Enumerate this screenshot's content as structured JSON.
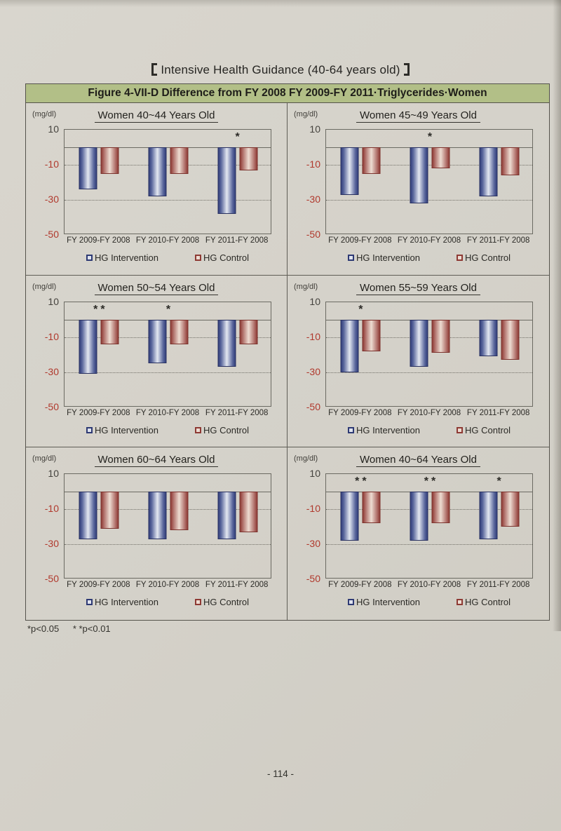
{
  "page": {
    "header_title": "Intensive Health Guidance (40-64 years old)",
    "figure_title": "Figure 4-VII-D Difference from FY 2008 FY 2009-FY 2011·Triglycerides·Women",
    "footnote_sig1": "*p<0.05",
    "footnote_sig2": "* *p<0.01",
    "page_number": "- 114 -"
  },
  "axis": {
    "unit_label": "(mg/dl)",
    "ticks": [
      10,
      -10,
      -30,
      -50
    ],
    "ymax": 10,
    "ymin": -50,
    "gridlines": [
      -10,
      -30
    ]
  },
  "legend": {
    "intervention": "HG Intervention",
    "control": "HG Control"
  },
  "colors": {
    "header_bar_bg": "#b2bf87",
    "intervention_dark": "#333f7c",
    "intervention_light": "#e3e7f1",
    "control_dark": "#8f3c36",
    "control_light": "#eddcd2",
    "negative_tick_red": "#b0392d",
    "paper": "#d4d1c9"
  },
  "chart_data": [
    {
      "type": "bar",
      "title": "Women 40~44 Years Old",
      "ylabel": "(mg/dl)",
      "ylim": [
        -50,
        10
      ],
      "categories": [
        "FY 2009-FY 2008",
        "FY 2010-FY 2008",
        "FY 2011-FY 2008"
      ],
      "series": [
        {
          "name": "HG Intervention",
          "values": [
            -24,
            -28,
            -38
          ]
        },
        {
          "name": "HG Control",
          "values": [
            -15,
            -15,
            -13
          ]
        }
      ],
      "sig": [
        "",
        "",
        "*"
      ]
    },
    {
      "type": "bar",
      "title": "Women 45~49 Years Old",
      "ylabel": "(mg/dl)",
      "ylim": [
        -50,
        10
      ],
      "categories": [
        "FY 2009-FY 2008",
        "FY 2010-FY 2008",
        "FY 2011-FY 2008"
      ],
      "series": [
        {
          "name": "HG Intervention",
          "values": [
            -27,
            -32,
            -28
          ]
        },
        {
          "name": "HG Control",
          "values": [
            -15,
            -12,
            -16
          ]
        }
      ],
      "sig": [
        "",
        "*",
        ""
      ]
    },
    {
      "type": "bar",
      "title": "Women 50~54 Years Old",
      "ylabel": "(mg/dl)",
      "ylim": [
        -50,
        10
      ],
      "categories": [
        "FY 2009-FY 2008",
        "FY 2010-FY 2008",
        "FY 2011-FY 2008"
      ],
      "series": [
        {
          "name": "HG Intervention",
          "values": [
            -31,
            -25,
            -27
          ]
        },
        {
          "name": "HG Control",
          "values": [
            -14,
            -14,
            -14
          ]
        }
      ],
      "sig": [
        "**",
        "*",
        ""
      ]
    },
    {
      "type": "bar",
      "title": "Women 55~59 Years Old",
      "ylabel": "(mg/dl)",
      "ylim": [
        -50,
        10
      ],
      "categories": [
        "FY 2009-FY 2008",
        "FY 2010-FY 2008",
        "FY 2011-FY 2008"
      ],
      "series": [
        {
          "name": "HG Intervention",
          "values": [
            -30,
            -27,
            -21
          ]
        },
        {
          "name": "HG Control",
          "values": [
            -18,
            -19,
            -23
          ]
        }
      ],
      "sig": [
        "*",
        "",
        ""
      ]
    },
    {
      "type": "bar",
      "title": "Women 60~64 Years Old",
      "ylabel": "(mg/dl)",
      "ylim": [
        -50,
        10
      ],
      "categories": [
        "FY 2009-FY 2008",
        "FY 2010-FY 2008",
        "FY 2011-FY 2008"
      ],
      "series": [
        {
          "name": "HG Intervention",
          "values": [
            -27,
            -27,
            -27
          ]
        },
        {
          "name": "HG Control",
          "values": [
            -21,
            -22,
            -23
          ]
        }
      ],
      "sig": [
        "",
        "",
        ""
      ]
    },
    {
      "type": "bar",
      "title": "Women 40~64 Years Old",
      "ylabel": "(mg/dl)",
      "ylim": [
        -50,
        10
      ],
      "categories": [
        "FY 2009-FY 2008",
        "FY 2010-FY 2008",
        "FY 2011-FY 2008"
      ],
      "series": [
        {
          "name": "HG Intervention",
          "values": [
            -28,
            -28,
            -27
          ]
        },
        {
          "name": "HG Control",
          "values": [
            -18,
            -18,
            -20
          ]
        }
      ],
      "sig": [
        "**",
        "**",
        "*"
      ]
    }
  ]
}
